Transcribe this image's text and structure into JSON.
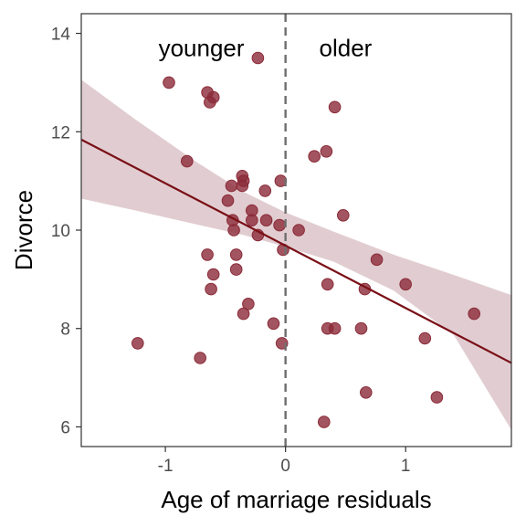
{
  "chart_data": {
    "type": "scatter",
    "title": "",
    "xlabel": "Age of marriage residuals",
    "ylabel": "Divorce",
    "xlim": [
      -1.7,
      1.88
    ],
    "ylim": [
      5.6,
      14.4
    ],
    "xticks": [
      {
        "value": -1,
        "label": "-1"
      },
      {
        "value": 0,
        "label": "0"
      },
      {
        "value": 1,
        "label": "1"
      }
    ],
    "yticks": [
      {
        "value": 6,
        "label": "6"
      },
      {
        "value": 8,
        "label": "8"
      },
      {
        "value": 10,
        "label": "10"
      },
      {
        "value": 12,
        "label": "12"
      },
      {
        "value": 14,
        "label": "14"
      }
    ],
    "grid": false,
    "vline": {
      "x": 0,
      "style": "dashed",
      "color": "#6e6e6e"
    },
    "annotations": [
      {
        "text": "younger",
        "x": -0.7,
        "y": 13.7
      },
      {
        "text": "older",
        "x": 0.5,
        "y": 13.7
      }
    ],
    "point_color": "#8b2a38",
    "line_color": "#7a0f16",
    "ribbon_color": "#e1cdd1",
    "points": [
      {
        "x": -0.97,
        "y": 13.0
      },
      {
        "x": -0.65,
        "y": 12.8
      },
      {
        "x": -0.6,
        "y": 12.7
      },
      {
        "x": -0.63,
        "y": 12.6
      },
      {
        "x": -0.23,
        "y": 13.5
      },
      {
        "x": 0.41,
        "y": 12.5
      },
      {
        "x": -0.82,
        "y": 11.4
      },
      {
        "x": 0.24,
        "y": 11.5
      },
      {
        "x": 0.34,
        "y": 11.6
      },
      {
        "x": -0.36,
        "y": 11.1
      },
      {
        "x": -0.45,
        "y": 10.9
      },
      {
        "x": -0.36,
        "y": 10.9
      },
      {
        "x": -0.35,
        "y": 11.0
      },
      {
        "x": -0.17,
        "y": 10.8
      },
      {
        "x": -0.04,
        "y": 11.0
      },
      {
        "x": -0.48,
        "y": 10.6
      },
      {
        "x": -0.28,
        "y": 10.4
      },
      {
        "x": -0.44,
        "y": 10.2
      },
      {
        "x": -0.28,
        "y": 10.2
      },
      {
        "x": -0.16,
        "y": 10.2
      },
      {
        "x": -0.05,
        "y": 10.1
      },
      {
        "x": 0.48,
        "y": 10.3
      },
      {
        "x": -0.43,
        "y": 10.0
      },
      {
        "x": 0.11,
        "y": 10.0
      },
      {
        "x": -0.23,
        "y": 9.9
      },
      {
        "x": -0.02,
        "y": 9.6
      },
      {
        "x": -0.65,
        "y": 9.5
      },
      {
        "x": -0.41,
        "y": 9.5
      },
      {
        "x": 0.76,
        "y": 9.4
      },
      {
        "x": -0.41,
        "y": 9.2
      },
      {
        "x": -0.6,
        "y": 9.1
      },
      {
        "x": 0.35,
        "y": 8.9
      },
      {
        "x": 1.0,
        "y": 8.9
      },
      {
        "x": -0.62,
        "y": 8.8
      },
      {
        "x": 0.66,
        "y": 8.8
      },
      {
        "x": -0.31,
        "y": 8.5
      },
      {
        "x": -0.35,
        "y": 8.3
      },
      {
        "x": 1.57,
        "y": 8.3
      },
      {
        "x": -0.1,
        "y": 8.1
      },
      {
        "x": 0.35,
        "y": 8.0
      },
      {
        "x": 0.41,
        "y": 8.0
      },
      {
        "x": 0.63,
        "y": 8.0
      },
      {
        "x": 1.16,
        "y": 7.8
      },
      {
        "x": -1.23,
        "y": 7.7
      },
      {
        "x": -0.03,
        "y": 7.7
      },
      {
        "x": -0.71,
        "y": 7.4
      },
      {
        "x": 0.67,
        "y": 6.7
      },
      {
        "x": 1.26,
        "y": 6.6
      },
      {
        "x": 0.32,
        "y": 6.1
      }
    ],
    "fit_line": {
      "x": [
        -1.7,
        1.88
      ],
      "y": [
        11.84,
        7.3
      ]
    },
    "ribbon": {
      "x": [
        -1.7,
        -1.25,
        -0.75,
        -0.35,
        0,
        0.4,
        0.9,
        1.4,
        1.88
      ],
      "upper": [
        13.06,
        12.25,
        11.4,
        10.78,
        10.36,
        9.97,
        9.5,
        9.09,
        8.68
      ],
      "lower": [
        10.64,
        10.4,
        10.12,
        9.9,
        9.66,
        9.36,
        8.77,
        7.87,
        5.94
      ]
    }
  }
}
